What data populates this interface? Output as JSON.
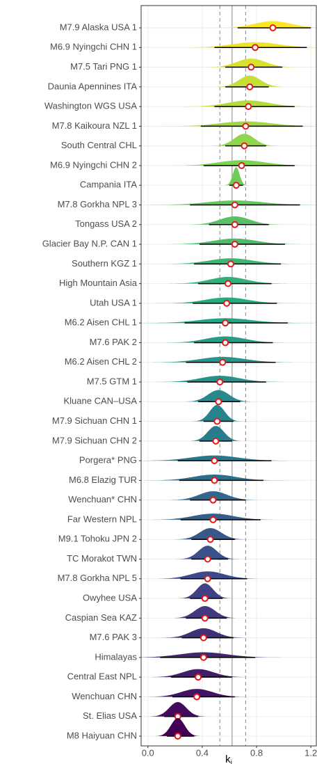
{
  "chart_data": {
    "type": "ridgeline",
    "xlabel": "k",
    "xlabel_subscript": "i",
    "categories": [
      "M7.9 Alaska USA 1",
      "M6.9 Nyingchi CHN 1",
      "M7.5 Tari PNG 1",
      "Daunia Apennines ITA",
      "Washington WGS USA",
      "M7.8 Kaikoura NZL 1",
      "South Central CHL",
      "M6.9 Nyingchi CHN 2",
      "Campania ITA",
      "M7.8 Gorkha NPL 3",
      "Tongass USA 2",
      "Glacier Bay N.P. CAN 1",
      "Southern KGZ 1",
      "High Mountain Asia",
      "Utah USA 1",
      "M6.2 Aisen CHL 1",
      "M7.6 PAK 2",
      "M6.2 Aisen CHL 2",
      "M7.5 GTM 1",
      "Kluane CAN–USA",
      "M7.9 Sichuan CHN 1",
      "M7.9 Sichuan CHN 2",
      "Porgera* PNG",
      "M6.8 Elazig TUR",
      "Wenchuan* CHN",
      "Far Western NPL",
      "M9.1 Tohoku JPN 2",
      "TC Morakot TWN",
      "M7.8 Gorkha NPL 5",
      "Owyhee USA",
      "Caspian Sea KAZ",
      "M7.6 PAK 3",
      "Himalayas",
      "Central East NPL",
      "Wenchuan CHN",
      "St. Elias USA",
      "M8 Haiyuan CHN"
    ],
    "values": [
      0.92,
      0.79,
      0.76,
      0.75,
      0.74,
      0.72,
      0.71,
      0.69,
      0.65,
      0.64,
      0.64,
      0.64,
      0.61,
      0.59,
      0.58,
      0.57,
      0.57,
      0.55,
      0.53,
      0.52,
      0.51,
      0.5,
      0.49,
      0.49,
      0.48,
      0.48,
      0.46,
      0.44,
      0.44,
      0.42,
      0.42,
      0.41,
      0.41,
      0.37,
      0.36,
      0.22,
      0.22
    ],
    "lower": [
      0.66,
      0.49,
      0.57,
      0.57,
      0.49,
      0.39,
      0.57,
      0.41,
      0.6,
      0.31,
      0.45,
      0.38,
      0.34,
      0.37,
      0.33,
      0.27,
      0.34,
      0.28,
      0.29,
      0.37,
      0.41,
      0.38,
      0.22,
      0.23,
      0.31,
      0.24,
      0.32,
      0.32,
      0.24,
      0.31,
      0.28,
      0.25,
      0.09,
      0.17,
      0.18,
      0.12,
      0.14
    ],
    "upper": [
      1.2,
      1.17,
      0.99,
      0.89,
      1.08,
      1.14,
      0.87,
      1.08,
      0.7,
      1.12,
      0.89,
      1.01,
      0.98,
      0.91,
      0.95,
      1.03,
      0.92,
      0.94,
      0.87,
      0.68,
      0.63,
      0.62,
      0.91,
      0.85,
      0.72,
      0.83,
      0.64,
      0.59,
      0.73,
      0.55,
      0.58,
      0.63,
      0.79,
      0.62,
      0.64,
      0.37,
      0.34
    ],
    "color_scale": [
      "#fde725",
      "#7ad151",
      "#22a884",
      "#2a788e",
      "#414487",
      "#440154"
    ],
    "point_color": "#e31a1c",
    "reference_line": 0.62,
    "interval_lines": [
      0.53,
      0.72
    ],
    "xlim": [
      -0.05,
      1.24
    ],
    "xticks": [
      {
        "value": 0,
        "label": "0.0"
      },
      {
        "value": 0.4,
        "label": "0.4"
      },
      {
        "value": 0.8,
        "label": "0.8"
      },
      {
        "value": 1.2,
        "label": "1.2"
      }
    ],
    "grid": true
  }
}
